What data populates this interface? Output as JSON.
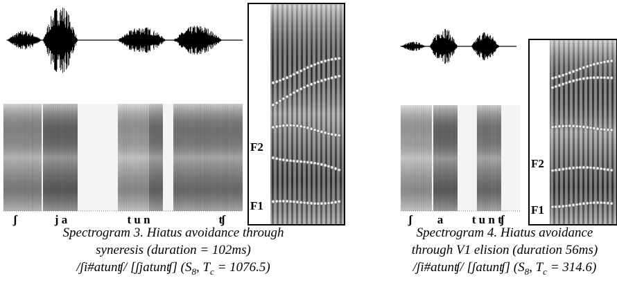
{
  "figures": [
    {
      "segments": [
        "ʃ",
        "j a",
        "t u n",
        "ʧ"
      ],
      "formants": [
        "F2",
        "F1"
      ],
      "caption": [
        "Spectrogram 3. Hiatus avoidance through",
        "syneresis (duration = 102ms)"
      ],
      "transcription": {
        "text": "/ʃi#atunʧ/  [ʃjatunʧ] (S",
        "speaker": "8",
        "sep": ", T",
        "sub": "c",
        "tail": " = 1076.5)"
      }
    },
    {
      "segments": [
        "ʃ",
        "a",
        "t u n ʧ"
      ],
      "formants": [
        "F2",
        "F1"
      ],
      "caption": [
        "Spectrogram 4. Hiatus avoidance",
        "through V1 elision (duration 56ms)"
      ],
      "transcription": {
        "text": "/ʃi#atunʧ/ [ʃatunʧ] (S",
        "speaker": "8",
        "sep": ", T",
        "sub": "c",
        "tail": " = 314.6)"
      }
    }
  ]
}
